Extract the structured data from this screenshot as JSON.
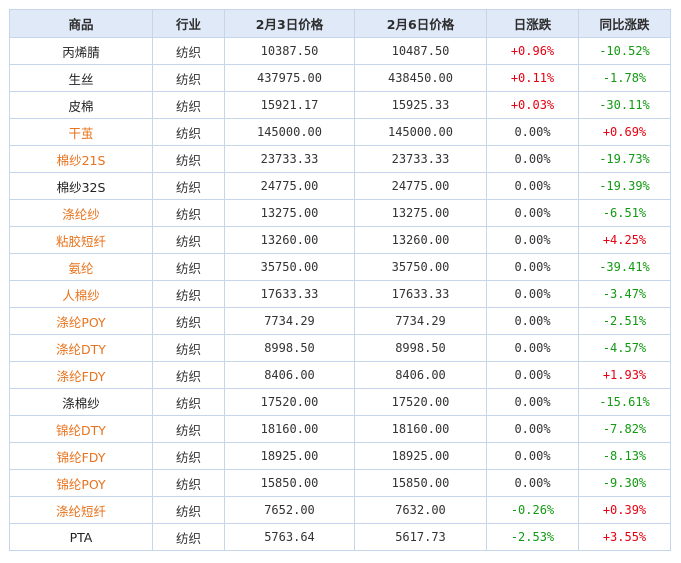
{
  "headers": [
    "商品",
    "行业",
    "2月3日价格",
    "2月6日价格",
    "日涨跌",
    "同比涨跌"
  ],
  "rows": [
    {
      "name": "丙烯腈",
      "name_color": "black",
      "industry": "纺织",
      "p1": "10387.50",
      "p2": "10487.50",
      "day": "+0.96%",
      "day_color": "red",
      "yoy": "-10.52%",
      "yoy_color": "green"
    },
    {
      "name": "生丝",
      "name_color": "black",
      "industry": "纺织",
      "p1": "437975.00",
      "p2": "438450.00",
      "day": "+0.11%",
      "day_color": "red",
      "yoy": "-1.78%",
      "yoy_color": "green"
    },
    {
      "name": "皮棉",
      "name_color": "black",
      "industry": "纺织",
      "p1": "15921.17",
      "p2": "15925.33",
      "day": "+0.03%",
      "day_color": "red",
      "yoy": "-30.11%",
      "yoy_color": "green"
    },
    {
      "name": "干茧",
      "name_color": "orange",
      "industry": "纺织",
      "p1": "145000.00",
      "p2": "145000.00",
      "day": "0.00%",
      "day_color": "gray",
      "yoy": "+0.69%",
      "yoy_color": "red"
    },
    {
      "name": "棉纱21S",
      "name_color": "orange",
      "industry": "纺织",
      "p1": "23733.33",
      "p2": "23733.33",
      "day": "0.00%",
      "day_color": "gray",
      "yoy": "-19.73%",
      "yoy_color": "green"
    },
    {
      "name": "棉纱32S",
      "name_color": "black",
      "industry": "纺织",
      "p1": "24775.00",
      "p2": "24775.00",
      "day": "0.00%",
      "day_color": "gray",
      "yoy": "-19.39%",
      "yoy_color": "green"
    },
    {
      "name": "涤纶纱",
      "name_color": "orange",
      "industry": "纺织",
      "p1": "13275.00",
      "p2": "13275.00",
      "day": "0.00%",
      "day_color": "gray",
      "yoy": "-6.51%",
      "yoy_color": "green"
    },
    {
      "name": "粘胶短纤",
      "name_color": "orange",
      "industry": "纺织",
      "p1": "13260.00",
      "p2": "13260.00",
      "day": "0.00%",
      "day_color": "gray",
      "yoy": "+4.25%",
      "yoy_color": "red"
    },
    {
      "name": "氨纶",
      "name_color": "orange",
      "industry": "纺织",
      "p1": "35750.00",
      "p2": "35750.00",
      "day": "0.00%",
      "day_color": "gray",
      "yoy": "-39.41%",
      "yoy_color": "green"
    },
    {
      "name": "人棉纱",
      "name_color": "orange",
      "industry": "纺织",
      "p1": "17633.33",
      "p2": "17633.33",
      "day": "0.00%",
      "day_color": "gray",
      "yoy": "-3.47%",
      "yoy_color": "green"
    },
    {
      "name": "涤纶POY",
      "name_color": "orange",
      "industry": "纺织",
      "p1": "7734.29",
      "p2": "7734.29",
      "day": "0.00%",
      "day_color": "gray",
      "yoy": "-2.51%",
      "yoy_color": "green"
    },
    {
      "name": "涤纶DTY",
      "name_color": "orange",
      "industry": "纺织",
      "p1": "8998.50",
      "p2": "8998.50",
      "day": "0.00%",
      "day_color": "gray",
      "yoy": "-4.57%",
      "yoy_color": "green"
    },
    {
      "name": "涤纶FDY",
      "name_color": "orange",
      "industry": "纺织",
      "p1": "8406.00",
      "p2": "8406.00",
      "day": "0.00%",
      "day_color": "gray",
      "yoy": "+1.93%",
      "yoy_color": "red"
    },
    {
      "name": "涤棉纱",
      "name_color": "black",
      "industry": "纺织",
      "p1": "17520.00",
      "p2": "17520.00",
      "day": "0.00%",
      "day_color": "gray",
      "yoy": "-15.61%",
      "yoy_color": "green"
    },
    {
      "name": "锦纶DTY",
      "name_color": "orange",
      "industry": "纺织",
      "p1": "18160.00",
      "p2": "18160.00",
      "day": "0.00%",
      "day_color": "gray",
      "yoy": "-7.82%",
      "yoy_color": "green"
    },
    {
      "name": "锦纶FDY",
      "name_color": "orange",
      "industry": "纺织",
      "p1": "18925.00",
      "p2": "18925.00",
      "day": "0.00%",
      "day_color": "gray",
      "yoy": "-8.13%",
      "yoy_color": "green"
    },
    {
      "name": "锦纶POY",
      "name_color": "orange",
      "industry": "纺织",
      "p1": "15850.00",
      "p2": "15850.00",
      "day": "0.00%",
      "day_color": "gray",
      "yoy": "-9.30%",
      "yoy_color": "green"
    },
    {
      "name": "涤纶短纤",
      "name_color": "orange",
      "industry": "纺织",
      "p1": "7652.00",
      "p2": "7632.00",
      "day": "-0.26%",
      "day_color": "green",
      "yoy": "+0.39%",
      "yoy_color": "red"
    },
    {
      "name": "PTA",
      "name_color": "black",
      "industry": "纺织",
      "p1": "5763.64",
      "p2": "5617.73",
      "day": "-2.53%",
      "day_color": "green",
      "yoy": "+3.55%",
      "yoy_color": "red"
    }
  ],
  "colors": {
    "header_bg": "#dfe9f7",
    "border": "#c6d6ea",
    "orange": "#e8731c",
    "red": "#e60012",
    "green": "#129a12"
  }
}
